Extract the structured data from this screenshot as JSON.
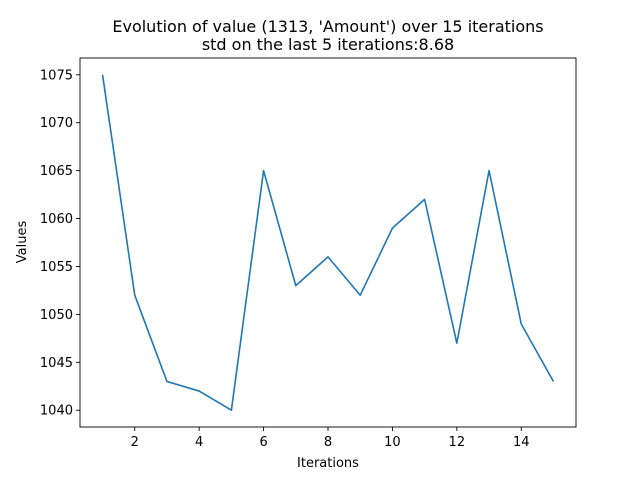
{
  "chart_data": {
    "type": "line",
    "title": "Evolution of value (1313, 'Amount') over 15 iterations",
    "subtitle": "std on the last 5 iterations:8.68",
    "xlabel": "Iterations",
    "ylabel": "Values",
    "x": [
      1,
      2,
      3,
      4,
      5,
      6,
      7,
      8,
      9,
      10,
      11,
      12,
      13,
      14,
      15
    ],
    "series": [
      {
        "values": [
          1075,
          1052,
          1043,
          1042,
          1040,
          1065,
          1053,
          1056,
          1052,
          1059,
          1062,
          1047,
          1065,
          1049,
          1043
        ]
      }
    ],
    "xlim": [
      0.3,
      15.7
    ],
    "ylim": [
      1038.25,
      1076.75
    ],
    "xticks": [
      2,
      4,
      6,
      8,
      10,
      12,
      14
    ],
    "yticks": [
      1040,
      1045,
      1050,
      1055,
      1060,
      1065,
      1070,
      1075
    ],
    "grid": false,
    "line_color": "#1f77b4"
  }
}
